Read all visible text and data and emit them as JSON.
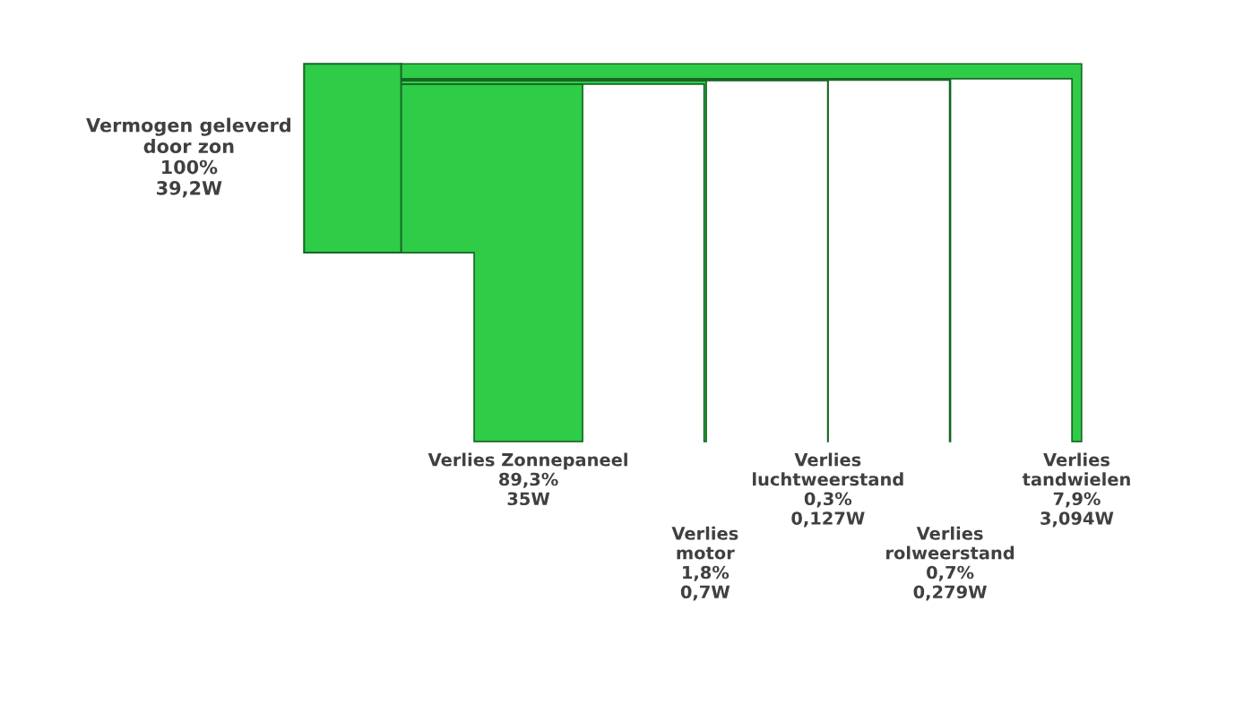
{
  "chart_data": {
    "type": "other",
    "categories": [
      "Vermogen geleverd\ndoor zon",
      "Verlies Zonnepaneel",
      "Verlies\nmotor",
      "Verlies\nluchtweerstand",
      "Verlies\nrolweerstand",
      "Verlies\ntandwielen"
    ],
    "values": [
      39.2,
      35,
      0.7,
      0.127,
      0.279,
      3.094
    ],
    "value_labels": [
      "100%\n39,2W",
      "89,3%\n35W",
      "1,8%\n0,7W",
      "0,3%\n0,127W",
      "0,7%\n0,279W",
      "7,9%\n3,094W"
    ],
    "color": "#2ecc47"
  }
}
